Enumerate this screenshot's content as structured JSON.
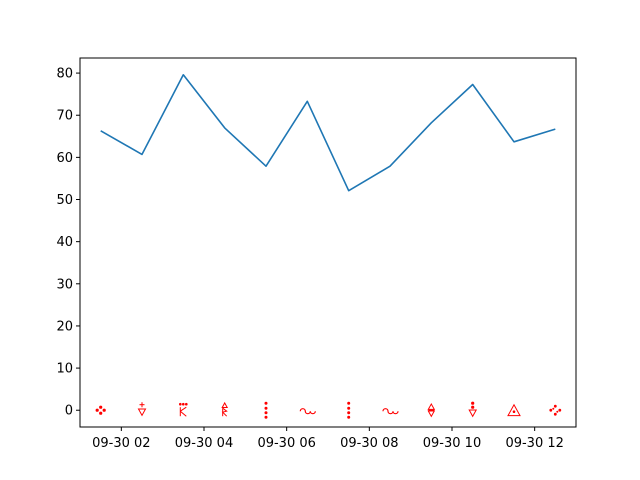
{
  "chart_data": {
    "type": "line",
    "title": "",
    "xlabel": "",
    "ylabel": "",
    "x": [
      "09-30 01:30",
      "09-30 02:30",
      "09-30 03:30",
      "09-30 04:30",
      "09-30 05:30",
      "09-30 06:30",
      "09-30 07:30",
      "09-30 08:30",
      "09-30 09:30",
      "09-30 10:30",
      "09-30 11:30",
      "09-30 12:30"
    ],
    "series": [
      {
        "values": [
          66.3,
          60.7,
          79.6,
          67.0,
          57.9,
          73.3,
          52.1,
          57.9,
          68.2,
          77.3,
          63.7,
          66.7
        ],
        "color": "#1f77b4"
      }
    ],
    "markers": {
      "y_values": [
        0,
        0,
        0,
        0,
        0,
        0,
        0,
        0,
        0,
        0,
        0,
        0
      ],
      "color": "#ff0000"
    },
    "xticks": [
      "09-30 02",
      "09-30 04",
      "09-30 06",
      "09-30 08",
      "09-30 10",
      "09-30 12"
    ],
    "yticks": [
      0,
      10,
      20,
      30,
      40,
      50,
      60,
      70,
      80
    ],
    "xlim": [
      "09-30 01:00",
      "09-30 13:00"
    ],
    "ylim": [
      -3.98,
      83.58
    ],
    "grid": false,
    "legend": "none"
  }
}
